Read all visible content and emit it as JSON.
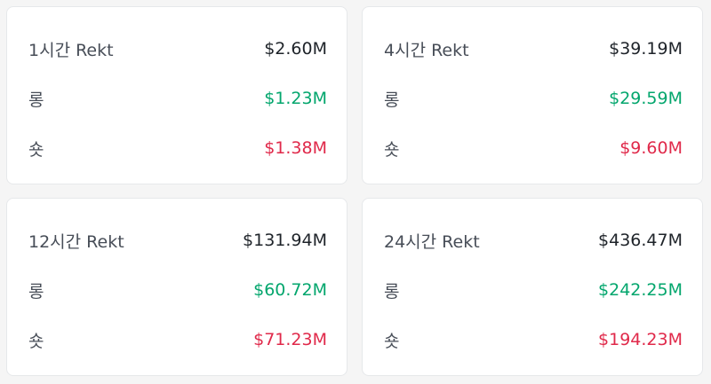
{
  "cards": [
    {
      "title": "1시간 Rekt",
      "total": "$2.60M",
      "long_label": "롱",
      "long_value": "$1.23M",
      "short_label": "숏",
      "short_value": "$1.38M"
    },
    {
      "title": "4시간 Rekt",
      "total": "$39.19M",
      "long_label": "롱",
      "long_value": "$29.59M",
      "short_label": "숏",
      "short_value": "$9.60M"
    },
    {
      "title": "12시간 Rekt",
      "total": "$131.94M",
      "long_label": "롱",
      "long_value": "$60.72M",
      "short_label": "숏",
      "short_value": "$71.23M"
    },
    {
      "title": "24시간 Rekt",
      "total": "$436.47M",
      "long_label": "롱",
      "long_value": "$242.25M",
      "short_label": "숏",
      "short_value": "$194.23M"
    }
  ],
  "colors": {
    "long": "#03a66d",
    "short": "#e0294a",
    "text_primary": "#1e2329",
    "text_secondary": "#474d57",
    "card_bg": "#ffffff",
    "page_bg": "#f5f5f5"
  }
}
